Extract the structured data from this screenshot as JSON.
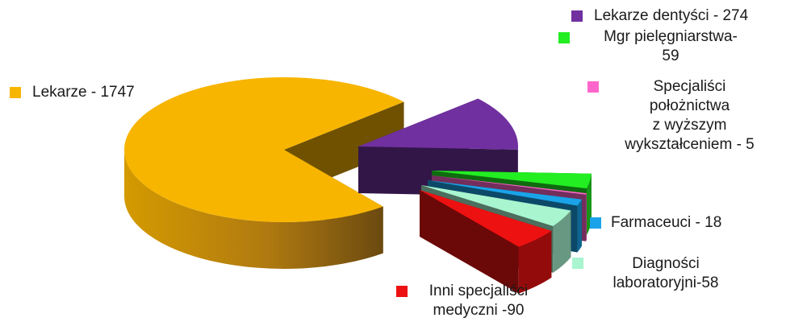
{
  "chart_data": {
    "type": "pie",
    "title": "",
    "style": "3d-exploded",
    "legend_placement": "labels-around-pie",
    "slices": [
      {
        "key": "lekarze",
        "label": "Lekarze - 1747",
        "value": 1747,
        "color": "#f7b500",
        "lines": [
          "Lekarze - 1747"
        ]
      },
      {
        "key": "dentysci",
        "label": "Lekarze dentyści - 274",
        "value": 274,
        "color": "#7030a0",
        "lines": [
          "Lekarze dentyści - 274"
        ]
      },
      {
        "key": "mgr_piel",
        "label": "Mgr pielęgniarstwa- 59",
        "value": 59,
        "color": "#22ee22",
        "lines": [
          "Mgr pielęgniarstwa-",
          "59"
        ]
      },
      {
        "key": "polozn",
        "label": "Specjaliści położnictwa z wyższym wykształceniem - 5",
        "value": 5,
        "color": "#ff66cc",
        "lines": [
          "Specjaliści",
          "położnictwa",
          "z wyższym",
          "wykształceniem - 5"
        ]
      },
      {
        "key": "farm",
        "label": "Farmaceuci - 18",
        "value": 18,
        "color": "#1aa3e8",
        "lines": [
          "Farmaceuci - 18"
        ]
      },
      {
        "key": "diag",
        "label": "Diagności laboratoryjni-58",
        "value": 58,
        "color": "#a8f5d0",
        "lines": [
          "Diagności",
          "laboratoryjni-58"
        ]
      },
      {
        "key": "inni",
        "label": "Inni specjaliści medyczni -90",
        "value": 90,
        "color": "#ee1111",
        "lines": [
          "Inni specjaliści",
          "medyczni -90"
        ]
      }
    ]
  }
}
